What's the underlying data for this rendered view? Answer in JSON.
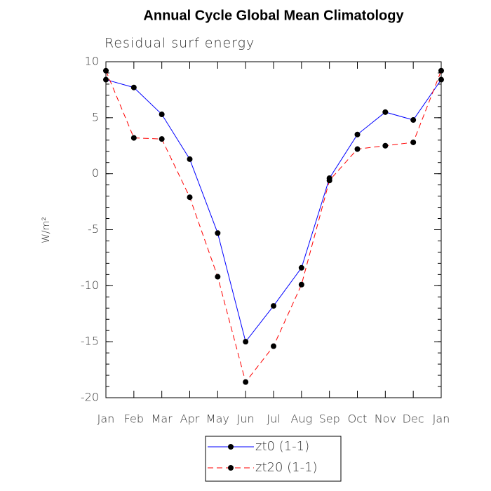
{
  "chart_data": {
    "type": "line",
    "title": "Annual Cycle Global Mean Climatology",
    "subtitle": "Residual surf energy",
    "y_label": "W/m²",
    "categories": [
      "Jan",
      "Feb",
      "Mar",
      "Apr",
      "May",
      "Jun",
      "Jul",
      "Aug",
      "Sep",
      "Oct",
      "Nov",
      "Dec",
      "Jan"
    ],
    "series": [
      {
        "name": "zt0 (1-1)",
        "color": "#0000ff",
        "dashed": false,
        "values": [
          8.4,
          7.7,
          5.3,
          1.3,
          -5.3,
          -15.0,
          -11.8,
          -8.4,
          -0.4,
          3.5,
          5.5,
          4.8,
          8.4
        ]
      },
      {
        "name": "zt20 (1-1)",
        "color": "#ff0000",
        "dashed": true,
        "values": [
          9.2,
          3.2,
          3.1,
          -2.1,
          -9.2,
          -18.6,
          -15.4,
          -9.9,
          -0.6,
          2.2,
          2.5,
          2.8,
          9.2
        ]
      }
    ],
    "ylim": [
      -20,
      10
    ],
    "yticks": [
      -20,
      -15,
      -10,
      -5,
      0,
      5,
      10
    ]
  }
}
